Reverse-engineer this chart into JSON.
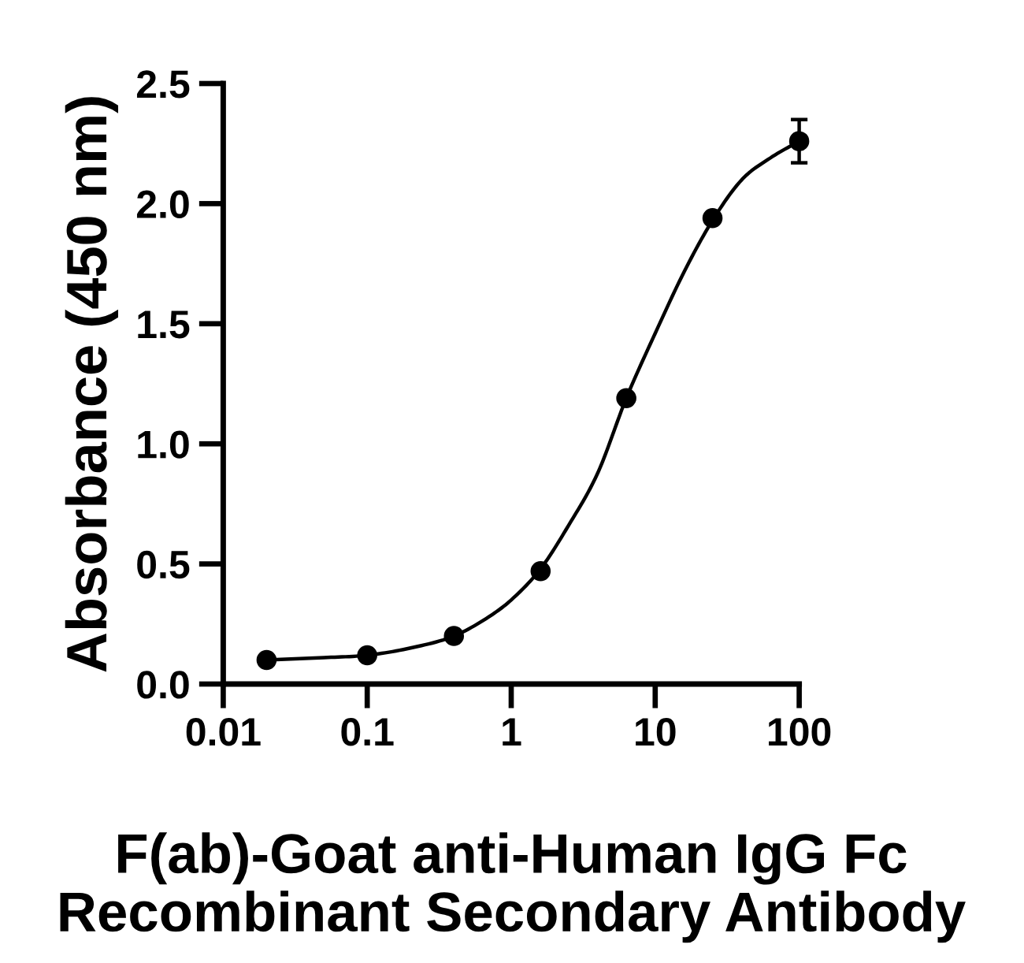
{
  "chart_data": {
    "type": "scatter",
    "xlabel": "F(ab)-Goat anti-Human IgG Fc\nRecombinant Secondary Antibody",
    "ylabel": "Absorbance (450 nm)",
    "log": "x",
    "xlim": [
      0.01,
      100
    ],
    "xticks": [
      0.01,
      0.1,
      1,
      10,
      100
    ],
    "ylim": [
      0,
      2.5
    ],
    "yticks": [
      {
        "value": 0,
        "label": "0.0"
      },
      0.5,
      {
        "value": 1,
        "label": "1.0"
      },
      1.5,
      {
        "value": 2,
        "label": "2.0"
      },
      2.5
    ],
    "series": [
      {
        "type": "line",
        "color": "#000000",
        "marker": "none",
        "line_style": "solid",
        "x": [
          0.02,
          0.05,
          0.1,
          0.2,
          0.4,
          0.7,
          1,
          1.6,
          2.5,
          4,
          6.3,
          10,
          16,
          25,
          40,
          63,
          100
        ],
        "values": [
          0.1,
          0.11,
          0.12,
          0.15,
          0.2,
          0.28,
          0.35,
          0.48,
          0.66,
          0.88,
          1.19,
          1.46,
          1.72,
          1.93,
          2.1,
          2.19,
          2.26
        ]
      },
      {
        "color": "#000000",
        "marker": "circle",
        "x": [
          0.02,
          0.1,
          0.4,
          1.6,
          6.3,
          25,
          100
        ],
        "values": [
          0.1,
          0.12,
          0.2,
          0.47,
          1.19,
          1.94,
          2.26
        ],
        "errors": [
          null,
          null,
          null,
          null,
          null,
          null,
          0.09
        ]
      }
    ]
  }
}
